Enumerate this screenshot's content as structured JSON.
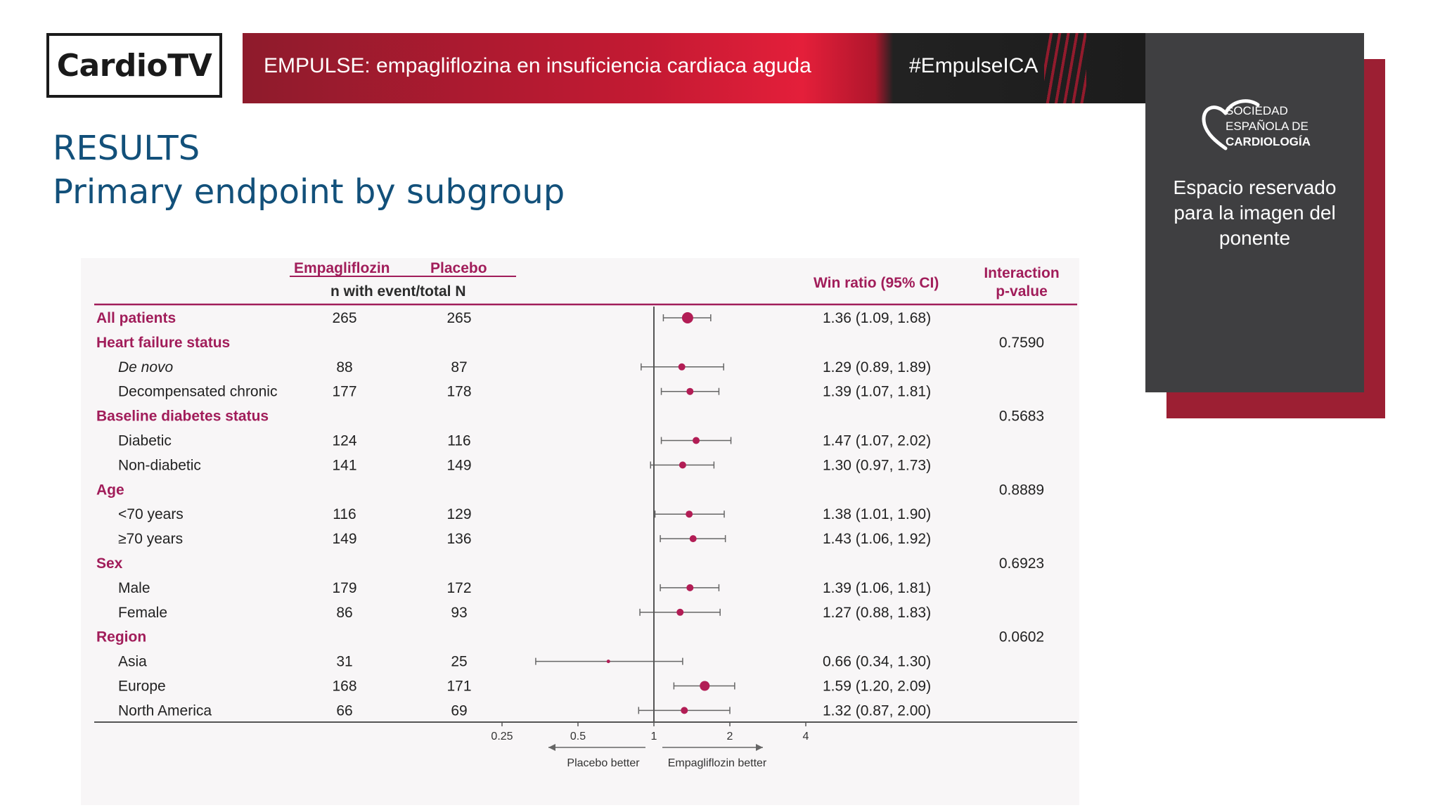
{
  "header": {
    "logo_text": "CardioTV",
    "banner_title": "EMPULSE: empagliflozina en insuficiencia cardiaca aguda",
    "hashtag": "#EmpulseICA"
  },
  "side_panel": {
    "org_line1": "SOCIEDAD",
    "org_line2": "ESPAÑOLA DE",
    "org_line3": "CARDIOLOGÍA",
    "placeholder_lines": [
      "Espacio reservado",
      "para la imagen del",
      "ponente"
    ]
  },
  "slide": {
    "title_line1": "RESULTS",
    "title_line2": "Primary endpoint by subgroup"
  },
  "chart_data": {
    "type": "forest",
    "columns": {
      "empagliflozin": "Empagliflozin",
      "placebo": "Placebo",
      "n_label": "n with event/total N",
      "ratio": "Win ratio (95% CI)",
      "pvalue_line1": "Interaction",
      "pvalue_line2": "p-value"
    },
    "x_axis": {
      "scale": "log",
      "ticks": [
        "0.25",
        "0.5",
        "1",
        "2",
        "4"
      ],
      "tick_values": [
        0.25,
        0.5,
        1,
        2,
        4
      ],
      "reference": 1,
      "left_label": "Placebo better",
      "right_label": "Empagliflozin better"
    },
    "rows": [
      {
        "label": "All patients",
        "kind": "group",
        "emp": "265",
        "pla": "265",
        "ratio": 1.36,
        "lo": 1.09,
        "hi": 1.68,
        "ci_text": "1.36 (1.09, 1.68)",
        "p": ""
      },
      {
        "label": "Heart failure status",
        "kind": "group",
        "emp": "",
        "pla": "",
        "ci_text": "",
        "p": "0.7590"
      },
      {
        "label": "De novo",
        "kind": "sub",
        "italic": true,
        "emp": "88",
        "pla": "87",
        "ratio": 1.29,
        "lo": 0.89,
        "hi": 1.89,
        "ci_text": "1.29 (0.89, 1.89)",
        "p": ""
      },
      {
        "label": "Decompensated chronic",
        "kind": "sub",
        "emp": "177",
        "pla": "178",
        "ratio": 1.39,
        "lo": 1.07,
        "hi": 1.81,
        "ci_text": "1.39 (1.07, 1.81)",
        "p": ""
      },
      {
        "label": "Baseline diabetes status",
        "kind": "group",
        "emp": "",
        "pla": "",
        "ci_text": "",
        "p": "0.5683"
      },
      {
        "label": "Diabetic",
        "kind": "sub",
        "emp": "124",
        "pla": "116",
        "ratio": 1.47,
        "lo": 1.07,
        "hi": 2.02,
        "ci_text": "1.47 (1.07, 2.02)",
        "p": ""
      },
      {
        "label": "Non-diabetic",
        "kind": "sub",
        "emp": "141",
        "pla": "149",
        "ratio": 1.3,
        "lo": 0.97,
        "hi": 1.73,
        "ci_text": "1.30 (0.97, 1.73)",
        "p": ""
      },
      {
        "label": "Age",
        "kind": "group",
        "emp": "",
        "pla": "",
        "ci_text": "",
        "p": "0.8889"
      },
      {
        "label": "<70 years",
        "kind": "sub",
        "emp": "116",
        "pla": "129",
        "ratio": 1.38,
        "lo": 1.01,
        "hi": 1.9,
        "ci_text": "1.38 (1.01, 1.90)",
        "p": ""
      },
      {
        "label": "≥70 years",
        "kind": "sub",
        "emp": "149",
        "pla": "136",
        "ratio": 1.43,
        "lo": 1.06,
        "hi": 1.92,
        "ci_text": "1.43 (1.06, 1.92)",
        "p": ""
      },
      {
        "label": "Sex",
        "kind": "group",
        "emp": "",
        "pla": "",
        "ci_text": "",
        "p": "0.6923"
      },
      {
        "label": "Male",
        "kind": "sub",
        "emp": "179",
        "pla": "172",
        "ratio": 1.39,
        "lo": 1.06,
        "hi": 1.81,
        "ci_text": "1.39 (1.06, 1.81)",
        "p": ""
      },
      {
        "label": "Female",
        "kind": "sub",
        "emp": "86",
        "pla": "93",
        "ratio": 1.27,
        "lo": 0.88,
        "hi": 1.83,
        "ci_text": "1.27 (0.88, 1.83)",
        "p": ""
      },
      {
        "label": "Region",
        "kind": "group",
        "emp": "",
        "pla": "",
        "ci_text": "",
        "p": "0.0602"
      },
      {
        "label": "Asia",
        "kind": "sub",
        "emp": "31",
        "pla": "25",
        "ratio": 0.66,
        "lo": 0.34,
        "hi": 1.3,
        "ci_text": "0.66 (0.34, 1.30)",
        "p": ""
      },
      {
        "label": "Europe",
        "kind": "sub",
        "emp": "168",
        "pla": "171",
        "ratio": 1.59,
        "lo": 1.2,
        "hi": 2.09,
        "ci_text": "1.59 (1.20, 2.09)",
        "p": ""
      },
      {
        "label": "North America",
        "kind": "sub",
        "emp": "66",
        "pla": "69",
        "ratio": 1.32,
        "lo": 0.87,
        "hi": 2.0,
        "ci_text": "1.32 (0.87, 2.00)",
        "p": ""
      }
    ],
    "colors": {
      "marker": "#b21d55",
      "header": "#a11d5a",
      "ci_line": "#666666"
    }
  }
}
